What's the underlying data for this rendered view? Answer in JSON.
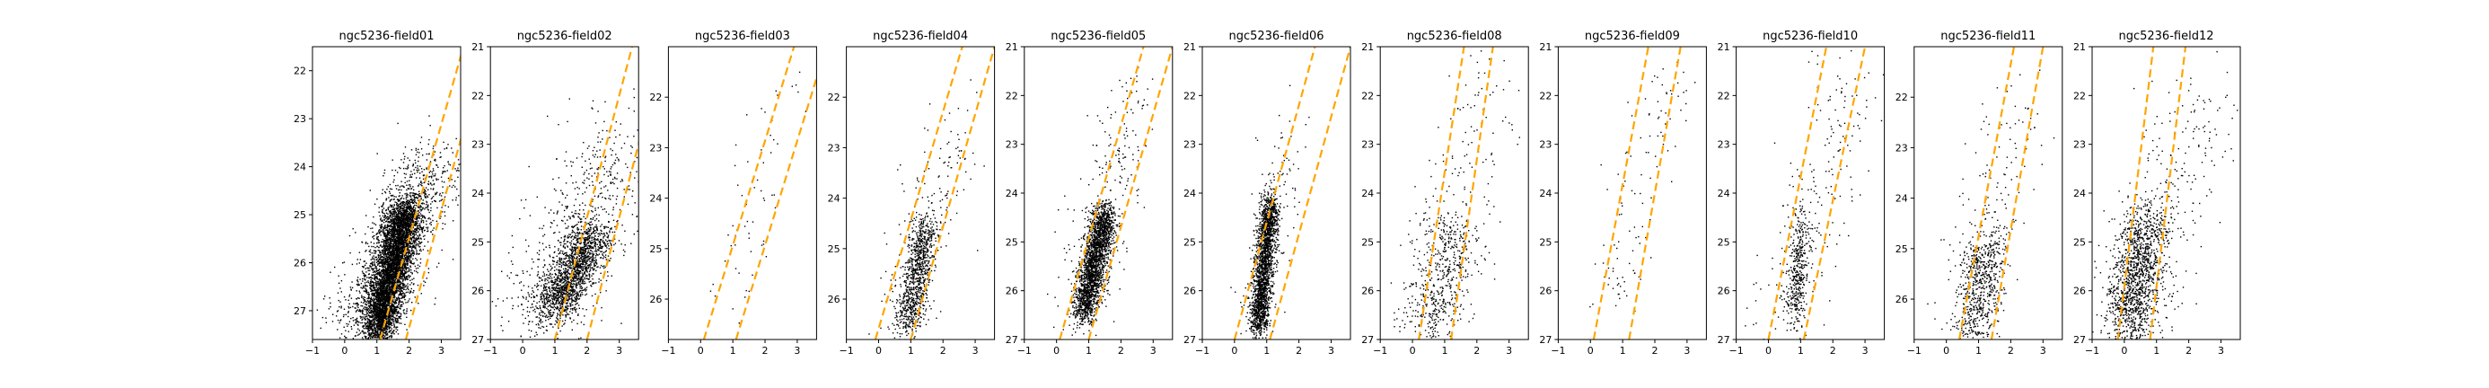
{
  "figure": {
    "background": "#ffffff"
  },
  "chart_data": [
    {
      "type": "scatter",
      "title": "ngc5236-field01",
      "xlim": [
        -1,
        3.6
      ],
      "ylim": [
        27.6,
        21.5
      ],
      "xticks": [
        -1,
        0,
        1,
        2,
        3
      ],
      "yticks": [
        22,
        23,
        24,
        25,
        26,
        27
      ],
      "color": "#000000",
      "guide_color": "#ffa500",
      "guides": [
        {
          "x": [
            1.1,
            3.9
          ],
          "y": [
            27.6,
            21.0
          ]
        },
        {
          "x": [
            1.9,
            4.6
          ],
          "y": [
            27.6,
            21.0
          ]
        }
      ],
      "clusters": [
        {
          "n": 5000,
          "x0": 1.0,
          "x1": 1.9,
          "y0": 27.5,
          "y1": 24.8,
          "sx": 0.28,
          "sy": 0.15
        },
        {
          "n": 1200,
          "x0": 0.4,
          "x1": 2.8,
          "y0": 27.4,
          "y1": 23.8,
          "sx": 0.55,
          "sy": 0.35
        }
      ]
    },
    {
      "type": "scatter",
      "title": "ngc5236-field02",
      "xlim": [
        -1,
        3.6
      ],
      "ylim": [
        27.0,
        21.0
      ],
      "xticks": [
        -1,
        0,
        1,
        2,
        3
      ],
      "yticks": [
        21,
        22,
        23,
        24,
        25,
        26,
        27
      ],
      "color": "#000000",
      "guide_color": "#ffa500",
      "guides": [
        {
          "x": [
            1.0,
            3.4
          ],
          "y": [
            27.0,
            21.0
          ]
        },
        {
          "x": [
            2.0,
            4.4
          ],
          "y": [
            27.0,
            21.0
          ]
        }
      ],
      "clusters": [
        {
          "n": 1600,
          "x0": 0.9,
          "x1": 2.2,
          "y0": 26.4,
          "y1": 24.8,
          "sx": 0.35,
          "sy": 0.2
        },
        {
          "n": 700,
          "x0": 0.2,
          "x1": 3.0,
          "y0": 26.8,
          "y1": 23.0,
          "sx": 0.7,
          "sy": 0.6
        }
      ]
    },
    {
      "type": "scatter",
      "title": "ngc5236-field03",
      "xlim": [
        -1,
        3.6
      ],
      "ylim": [
        26.8,
        21.0
      ],
      "xticks": [
        -1,
        0,
        1,
        2,
        3
      ],
      "yticks": [
        22,
        23,
        24,
        25,
        26
      ],
      "color": "#000000",
      "guide_color": "#ffa500",
      "guides": [
        {
          "x": [
            0.1,
            2.9
          ],
          "y": [
            26.8,
            21.0
          ]
        },
        {
          "x": [
            1.1,
            3.9
          ],
          "y": [
            26.8,
            21.0
          ]
        }
      ],
      "clusters": [
        {
          "n": 60,
          "x0": 0.5,
          "x1": 2.5,
          "y0": 26.5,
          "y1": 22.0,
          "sx": 0.4,
          "sy": 0.4
        }
      ]
    },
    {
      "type": "scatter",
      "title": "ngc5236-field04",
      "xlim": [
        -1,
        3.6
      ],
      "ylim": [
        26.8,
        21.0
      ],
      "xticks": [
        -1,
        0,
        1,
        2,
        3
      ],
      "yticks": [
        22,
        23,
        24,
        25,
        26
      ],
      "color": "#000000",
      "guide_color": "#ffa500",
      "guides": [
        {
          "x": [
            -0.1,
            2.6
          ],
          "y": [
            26.8,
            21.0
          ]
        },
        {
          "x": [
            1.0,
            3.6
          ],
          "y": [
            26.8,
            21.0
          ]
        }
      ],
      "clusters": [
        {
          "n": 900,
          "x0": 0.8,
          "x1": 1.5,
          "y0": 26.6,
          "y1": 24.5,
          "sx": 0.22,
          "sy": 0.2
        },
        {
          "n": 180,
          "x0": 0.6,
          "x1": 2.6,
          "y0": 26.5,
          "y1": 22.5,
          "sx": 0.5,
          "sy": 0.5
        }
      ]
    },
    {
      "type": "scatter",
      "title": "ngc5236-field05",
      "xlim": [
        -1,
        3.6
      ],
      "ylim": [
        27.0,
        21.0
      ],
      "xticks": [
        -1,
        0,
        1,
        2,
        3
      ],
      "yticks": [
        21,
        22,
        23,
        24,
        25,
        26,
        27
      ],
      "color": "#000000",
      "guide_color": "#ffa500",
      "guides": [
        {
          "x": [
            0.1,
            2.7
          ],
          "y": [
            27.0,
            21.0
          ]
        },
        {
          "x": [
            1.0,
            3.6
          ],
          "y": [
            27.0,
            21.0
          ]
        }
      ],
      "clusters": [
        {
          "n": 2200,
          "x0": 0.8,
          "x1": 1.5,
          "y0": 26.5,
          "y1": 24.4,
          "sx": 0.2,
          "sy": 0.18
        },
        {
          "n": 250,
          "x0": 0.6,
          "x1": 2.4,
          "y0": 26.6,
          "y1": 22.0,
          "sx": 0.45,
          "sy": 0.5
        }
      ]
    },
    {
      "type": "scatter",
      "title": "ngc5236-field06",
      "xlim": [
        -1,
        3.6
      ],
      "ylim": [
        27.0,
        21.0
      ],
      "xticks": [
        -1,
        0,
        1,
        2,
        3
      ],
      "yticks": [
        21,
        22,
        23,
        24,
        25,
        26,
        27
      ],
      "color": "#000000",
      "guide_color": "#ffa500",
      "guides": [
        {
          "x": [
            0.0,
            2.5
          ],
          "y": [
            27.0,
            21.0
          ]
        },
        {
          "x": [
            1.1,
            3.6
          ],
          "y": [
            27.0,
            21.0
          ]
        }
      ],
      "clusters": [
        {
          "n": 2000,
          "x0": 0.7,
          "x1": 1.1,
          "y0": 26.8,
          "y1": 24.2,
          "sx": 0.15,
          "sy": 0.18
        },
        {
          "n": 120,
          "x0": 0.6,
          "x1": 1.8,
          "y0": 26.5,
          "y1": 22.5,
          "sx": 0.35,
          "sy": 0.5
        }
      ]
    },
    {
      "type": "scatter",
      "title": "ngc5236-field08",
      "xlim": [
        -1,
        3.6
      ],
      "ylim": [
        27.0,
        21.0
      ],
      "xticks": [
        -1,
        0,
        1,
        2,
        3
      ],
      "yticks": [
        21,
        22,
        23,
        24,
        25,
        26,
        27
      ],
      "color": "#000000",
      "guide_color": "#ffa500",
      "guides": [
        {
          "x": [
            0.2,
            1.6
          ],
          "y": [
            27.0,
            21.0
          ]
        },
        {
          "x": [
            1.2,
            2.5
          ],
          "y": [
            27.0,
            21.0
          ]
        }
      ],
      "clusters": [
        {
          "n": 500,
          "x0": 0.5,
          "x1": 1.3,
          "y0": 26.8,
          "y1": 24.5,
          "sx": 0.45,
          "sy": 0.3
        },
        {
          "n": 200,
          "x0": 0.2,
          "x1": 2.5,
          "y0": 26.8,
          "y1": 21.5,
          "sx": 0.7,
          "sy": 0.6
        }
      ]
    },
    {
      "type": "scatter",
      "title": "ngc5236-field09",
      "xlim": [
        -1,
        3.6
      ],
      "ylim": [
        27.0,
        21.0
      ],
      "xticks": [
        -1,
        0,
        1,
        2,
        3
      ],
      "yticks": [
        21,
        22,
        23,
        24,
        25,
        26,
        27
      ],
      "color": "#000000",
      "guide_color": "#ffa500",
      "guides": [
        {
          "x": [
            0.1,
            1.8
          ],
          "y": [
            27.0,
            21.0
          ]
        },
        {
          "x": [
            1.2,
            2.8
          ],
          "y": [
            27.0,
            21.0
          ]
        }
      ],
      "clusters": [
        {
          "n": 110,
          "x0": 0.7,
          "x1": 2.3,
          "y0": 26.5,
          "y1": 21.5,
          "sx": 0.45,
          "sy": 0.4
        }
      ]
    },
    {
      "type": "scatter",
      "title": "ngc5236-field10",
      "xlim": [
        -1,
        3.6
      ],
      "ylim": [
        27.0,
        21.0
      ],
      "xticks": [
        -1,
        0,
        1,
        2,
        3
      ],
      "yticks": [
        21,
        22,
        23,
        24,
        25,
        26,
        27
      ],
      "color": "#000000",
      "guide_color": "#ffa500",
      "guides": [
        {
          "x": [
            0.0,
            1.8
          ],
          "y": [
            27.0,
            21.0
          ]
        },
        {
          "x": [
            1.1,
            3.0
          ],
          "y": [
            27.0,
            21.0
          ]
        }
      ],
      "clusters": [
        {
          "n": 380,
          "x0": 0.8,
          "x1": 1.0,
          "y0": 26.6,
          "y1": 24.6,
          "sx": 0.15,
          "sy": 0.25
        },
        {
          "n": 220,
          "x0": 0.2,
          "x1": 2.6,
          "y0": 26.8,
          "y1": 21.5,
          "sx": 0.6,
          "sy": 0.55
        }
      ]
    },
    {
      "type": "scatter",
      "title": "ngc5236-field11",
      "xlim": [
        -1,
        3.6
      ],
      "ylim": [
        26.8,
        21.0
      ],
      "xticks": [
        -1,
        0,
        1,
        2,
        3
      ],
      "yticks": [
        22,
        23,
        24,
        25,
        26
      ],
      "color": "#000000",
      "guide_color": "#ffa500",
      "guides": [
        {
          "x": [
            0.4,
            2.1
          ],
          "y": [
            26.8,
            21.0
          ]
        },
        {
          "x": [
            1.4,
            3.0
          ],
          "y": [
            26.8,
            21.0
          ]
        }
      ],
      "clusters": [
        {
          "n": 650,
          "x0": 0.8,
          "x1": 1.3,
          "y0": 26.7,
          "y1": 24.8,
          "sx": 0.35,
          "sy": 0.3
        },
        {
          "n": 150,
          "x0": 0.3,
          "x1": 2.5,
          "y0": 26.6,
          "y1": 21.8,
          "sx": 0.6,
          "sy": 0.5
        }
      ]
    },
    {
      "type": "scatter",
      "title": "ngc5236-field12",
      "xlim": [
        -1,
        3.6
      ],
      "ylim": [
        27.0,
        21.0
      ],
      "xticks": [
        -1,
        0,
        1,
        2,
        3
      ],
      "yticks": [
        21,
        22,
        23,
        24,
        25,
        26,
        27
      ],
      "color": "#000000",
      "guide_color": "#ffa500",
      "guides": [
        {
          "x": [
            -0.2,
            0.9
          ],
          "y": [
            27.0,
            21.0
          ]
        },
        {
          "x": [
            0.8,
            1.9
          ],
          "y": [
            27.0,
            21.0
          ]
        }
      ],
      "clusters": [
        {
          "n": 1300,
          "x0": 0.1,
          "x1": 0.7,
          "y0": 26.8,
          "y1": 24.5,
          "sx": 0.4,
          "sy": 0.3
        },
        {
          "n": 300,
          "x0": -0.2,
          "x1": 2.8,
          "y0": 26.8,
          "y1": 22.0,
          "sx": 0.7,
          "sy": 0.6
        }
      ]
    }
  ]
}
